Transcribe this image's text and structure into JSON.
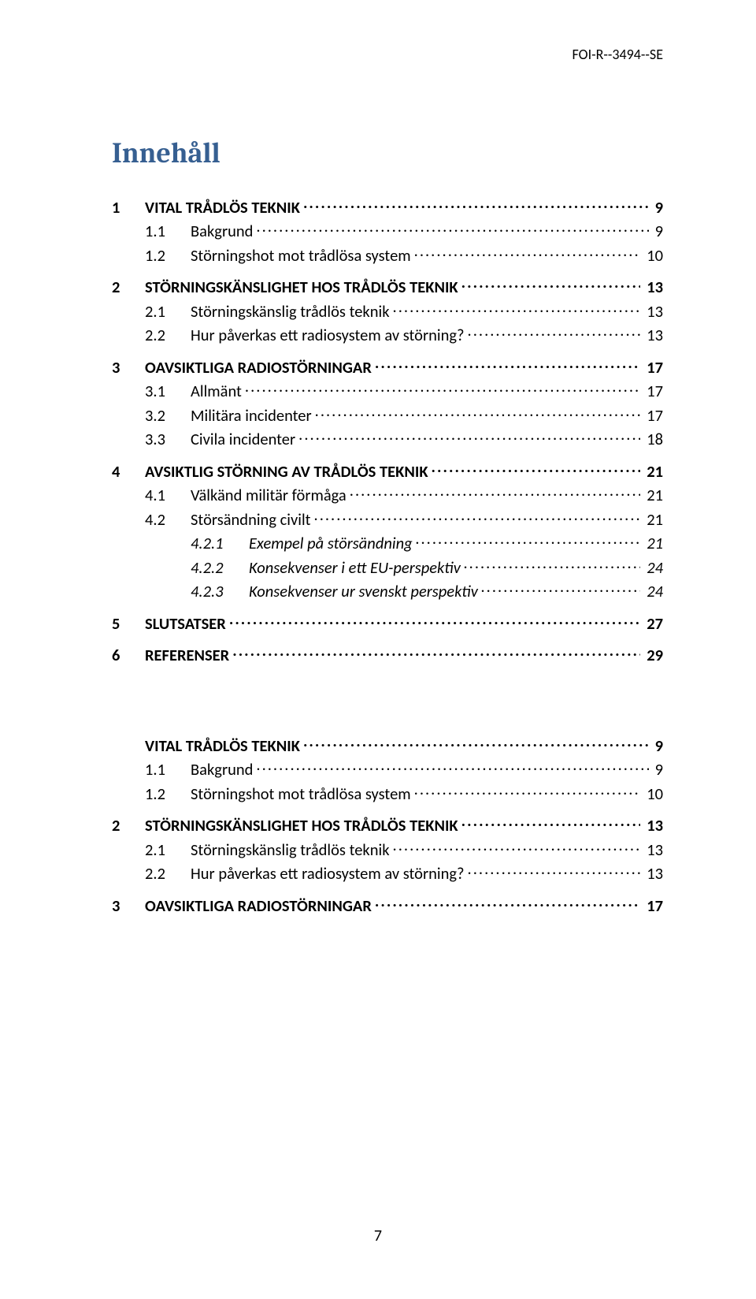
{
  "header": {
    "doc_id": "FOI-R--3494--SE"
  },
  "title": "Innehåll",
  "footer": {
    "page_number": "7"
  },
  "colors": {
    "title_color": "#365f91",
    "text_color": "#000000",
    "background": "#ffffff"
  },
  "typography": {
    "title_font": "Cambria",
    "title_size_pt": 27,
    "body_font": "Calibri",
    "body_size_pt": 15
  },
  "toc1": [
    {
      "level": 1,
      "num": "1",
      "label": "VITAL TRÅDLÖS TEKNIK",
      "page": "9",
      "smallcaps": false
    },
    {
      "level": 2,
      "num": "1.1",
      "label": "Bakgrund",
      "page": "9",
      "smallcaps": true
    },
    {
      "level": 2,
      "num": "1.2",
      "label": "Störningshot mot trådlösa system",
      "page": "10",
      "smallcaps": true
    },
    {
      "level": 1,
      "num": "2",
      "label": "STÖRNINGSKÄNSLIGHET HOS TRÅDLÖS TEKNIK",
      "page": "13",
      "smallcaps": false
    },
    {
      "level": 2,
      "num": "2.1",
      "label": "Störningskänslig trådlös teknik",
      "page": "13",
      "smallcaps": true
    },
    {
      "level": 2,
      "num": "2.2",
      "label": "Hur påverkas ett radiosystem av störning?",
      "page": "13",
      "smallcaps": true
    },
    {
      "level": 1,
      "num": "3",
      "label": "OAVSIKTLIGA RADIOSTÖRNINGAR",
      "page": "17",
      "smallcaps": false
    },
    {
      "level": 2,
      "num": "3.1",
      "label": "Allmänt",
      "page": "17",
      "smallcaps": true
    },
    {
      "level": 2,
      "num": "3.2",
      "label": "Militära incidenter",
      "page": "17",
      "smallcaps": true
    },
    {
      "level": 2,
      "num": "3.3",
      "label": "Civila incidenter",
      "page": "18",
      "smallcaps": true
    },
    {
      "level": 1,
      "num": "4",
      "label": "AVSIKTLIG STÖRNING AV TRÅDLÖS TEKNIK",
      "page": "21",
      "smallcaps": false
    },
    {
      "level": 2,
      "num": "4.1",
      "label": "Välkänd militär förmåga",
      "page": "21",
      "smallcaps": true
    },
    {
      "level": 2,
      "num": "4.2",
      "label": "Störsändning civilt",
      "page": "21",
      "smallcaps": true
    },
    {
      "level": 3,
      "num": "4.2.1",
      "label": "Exempel på störsändning",
      "page": "21",
      "smallcaps": false
    },
    {
      "level": 3,
      "num": "4.2.2",
      "label": "Konsekvenser i ett EU-perspektiv",
      "page": "24",
      "smallcaps": false
    },
    {
      "level": 3,
      "num": "4.2.3",
      "label": "Konsekvenser ur svenskt perspektiv",
      "page": "24",
      "smallcaps": false
    },
    {
      "level": 1,
      "num": "5",
      "label": "SLUTSATSER",
      "page": "27",
      "smallcaps": false
    },
    {
      "level": 1,
      "num": "6",
      "label": "REFERENSER",
      "page": "29",
      "smallcaps": false
    }
  ],
  "toc2": [
    {
      "level": 1,
      "num": "",
      "label": "VITAL TRÅDLÖS TEKNIK",
      "page": "9",
      "smallcaps": false
    },
    {
      "level": 2,
      "num": "1.1",
      "label": "Bakgrund",
      "page": "9",
      "smallcaps": true
    },
    {
      "level": 2,
      "num": "1.2",
      "label": "Störningshot mot trådlösa system",
      "page": "10",
      "smallcaps": true
    },
    {
      "level": 1,
      "num": "2",
      "label": "STÖRNINGSKÄNSLIGHET HOS TRÅDLÖS TEKNIK",
      "page": "13",
      "smallcaps": false
    },
    {
      "level": 2,
      "num": "2.1",
      "label": "Störningskänslig trådlös teknik",
      "page": "13",
      "smallcaps": true
    },
    {
      "level": 2,
      "num": "2.2",
      "label": "Hur påverkas ett radiosystem av störning?",
      "page": "13",
      "smallcaps": true
    },
    {
      "level": 1,
      "num": "3",
      "label": "OAVSIKTLIGA RADIOSTÖRNINGAR",
      "page": "17",
      "smallcaps": false
    }
  ]
}
